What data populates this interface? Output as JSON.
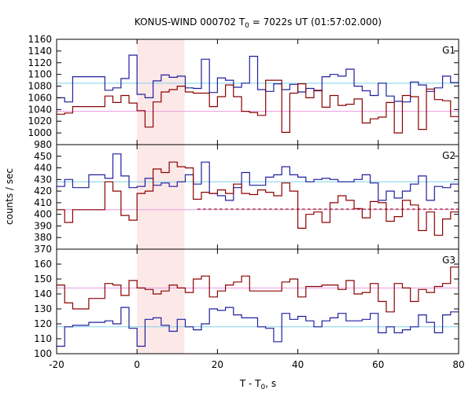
{
  "chart_data": {
    "type": "line",
    "title": "KONUS-WIND 000702 T",
    "title_sub": "0",
    "title_rest": " = 7022s UT (01:57:02.000)",
    "xlabel": "T - T",
    "xlabel_sub": "0",
    "xlabel_rest": ", s",
    "ylabel": "counts / sec",
    "xlim": [
      -20,
      80
    ],
    "x_ticks": [
      -20,
      0,
      20,
      40,
      60,
      80
    ],
    "highlight": {
      "x_start": 0,
      "x_end": 11.8,
      "color": "#fde8e8"
    },
    "bin_edges": [
      -20,
      -18,
      -16,
      -12,
      -8,
      -6,
      -4,
      -2,
      0,
      2,
      4,
      6,
      8,
      10,
      12,
      14,
      16,
      18,
      20,
      22,
      24,
      26,
      28,
      30,
      32,
      34,
      36,
      38,
      40,
      42,
      44,
      46,
      48,
      50,
      52,
      54,
      56,
      58,
      60,
      62,
      64,
      66,
      68,
      70,
      72,
      74,
      76,
      78,
      80
    ],
    "colors": {
      "blue": "#1f1f9e",
      "red": "#8b0000",
      "cyan": "#7fd0e8",
      "pink": "#e89ae0"
    },
    "panels": [
      {
        "name": "G1",
        "ylim": [
          980,
          1160
        ],
        "y_ticks": [
          980,
          1000,
          1020,
          1040,
          1060,
          1080,
          1100,
          1120,
          1140,
          1160
        ],
        "levels": [
          {
            "color_key": "cyan",
            "value": 1085,
            "style": "solid"
          },
          {
            "color_key": "pink",
            "value": 1037,
            "style": "solid"
          }
        ],
        "series": [
          {
            "color_key": "blue",
            "values": [
              1060,
              1053,
              1096,
              1096,
              1073,
              1077,
              1093,
              1133,
              1066,
              1060,
              1089,
              1099,
              1095,
              1097,
              1077,
              1076,
              1126,
              1069,
              1094,
              1090,
              1078,
              1085,
              1131,
              1074,
              1071,
              1084,
              1074,
              1083,
              1070,
              1076,
              1072,
              1096,
              1100,
              1097,
              1109,
              1080,
              1072,
              1064,
              1085,
              1063,
              1054,
              1053,
              1087,
              1082,
              1071,
              1077,
              1097,
              1086
            ]
          },
          {
            "color_key": "red",
            "values": [
              1032,
              1034,
              1045,
              1045,
              1063,
              1052,
              1064,
              1051,
              1038,
              1010,
              1053,
              1070,
              1074,
              1080,
              1070,
              1068,
              1068,
              1045,
              1062,
              1082,
              1062,
              1037,
              1035,
              1030,
              1090,
              1090,
              1001,
              1068,
              1084,
              1060,
              1073,
              1044,
              1064,
              1047,
              1049,
              1058,
              1017,
              1024,
              1027,
              1052,
              1000,
              1064,
              1062,
              1006,
              1075,
              1057,
              1055,
              1028
            ]
          }
        ]
      },
      {
        "name": "G2",
        "ylim": [
          370,
          460
        ],
        "y_ticks": [
          370,
          380,
          390,
          400,
          410,
          420,
          430,
          440,
          450
        ],
        "levels": [
          {
            "color_key": "cyan",
            "value": 428,
            "style": "solid"
          },
          {
            "color_key": "pink",
            "value": 404,
            "style": "solid"
          },
          {
            "color_key": "red",
            "value": 404.5,
            "style": "dashed",
            "x_start": 15
          }
        ],
        "series": [
          {
            "color_key": "blue",
            "values": [
              424,
              430,
              423,
              434,
              431,
              452,
              433,
              423,
              424,
              431,
              425,
              427,
              424,
              428,
              434,
              426,
              445,
              418,
              416,
              412,
              423,
              436,
              425,
              425,
              432,
              434,
              441,
              434,
              432,
              428,
              430,
              431,
              430,
              428,
              428,
              430,
              434,
              427,
              412,
              420,
              414,
              420,
              426,
              433,
              412,
              424,
              423,
              426
            ]
          },
          {
            "color_key": "red",
            "values": [
              404,
              393,
              404,
              404,
              428,
              420,
              399,
              395,
              418,
              420,
              439,
              436,
              445,
              441,
              440,
              413,
              419,
              418,
              421,
              418,
              426,
              418,
              417,
              421,
              419,
              416,
              427,
              420,
              388,
              400,
              402,
              393,
              410,
              416,
              412,
              405,
              397,
              411,
              410,
              394,
              398,
              412,
              408,
              386,
              402,
              382,
              396,
              402
            ]
          }
        ]
      },
      {
        "name": "G3",
        "ylim": [
          100,
          170
        ],
        "y_ticks": [
          100,
          110,
          120,
          130,
          140,
          150,
          160
        ],
        "levels": [
          {
            "color_key": "pink",
            "value": 144,
            "style": "solid"
          },
          {
            "color_key": "cyan",
            "value": 118,
            "style": "solid"
          }
        ],
        "series": [
          {
            "color_key": "blue",
            "values": [
              105,
              118,
              119,
              121,
              122,
              120,
              131,
              117,
              105,
              123,
              124,
              119,
              115,
              123,
              118,
              116,
              120,
              130,
              129,
              131,
              126,
              124,
              124,
              118,
              117,
              108,
              127,
              123,
              125,
              122,
              118,
              122,
              124,
              127,
              122,
              122,
              123,
              127,
              114,
              118,
              114,
              116,
              118,
              126,
              121,
              114,
              126,
              128
            ]
          },
          {
            "color_key": "red",
            "values": [
              146,
              134,
              130,
              137,
              147,
              146,
              139,
              149,
              144,
              143,
              140,
              142,
              146,
              144,
              141,
              150,
              152,
              138,
              142,
              146,
              148,
              152,
              142,
              142,
              142,
              142,
              148,
              150,
              138,
              145,
              145,
              146,
              146,
              143,
              149,
              140,
              141,
              147,
              135,
              128,
              147,
              144,
              135,
              143,
              141,
              145,
              147,
              158
            ]
          }
        ]
      }
    ]
  }
}
